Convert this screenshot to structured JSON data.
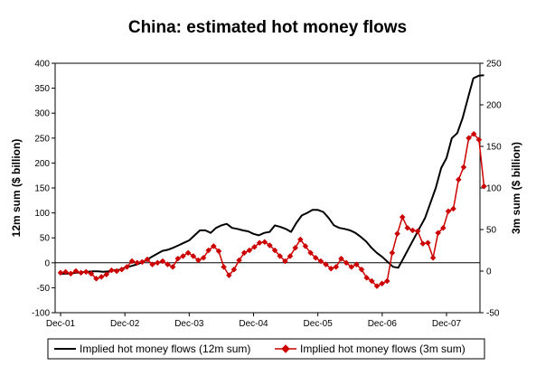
{
  "chart_data": {
    "type": "line",
    "title": "China: estimated hot money flows",
    "ylabel_left": "12m sum ($ billion)",
    "ylabel_right": "3m sum ($ billion)",
    "ylim_left": [
      -100,
      400
    ],
    "ylim_right": [
      -50,
      250
    ],
    "y_ticks_left": [
      -100,
      -50,
      0,
      50,
      100,
      150,
      200,
      250,
      300,
      350,
      400
    ],
    "y_ticks_right": [
      -50,
      0,
      50,
      100,
      150,
      200,
      250
    ],
    "x_tick_labels": [
      "Dec-01",
      "Dec-02",
      "Dec-03",
      "Dec-04",
      "Dec-05",
      "Dec-06",
      "Dec-07"
    ],
    "x_start": "Dec-01",
    "legend_position": "bottom",
    "series": [
      {
        "name": "Implied hot money flows (12m sum)",
        "axis": "left",
        "color": "#000000",
        "marker": "none",
        "values": [
          -22,
          -22,
          -21,
          -20,
          -19,
          -18,
          -17,
          -17,
          -18,
          -17,
          -15,
          -14,
          -10,
          -7,
          -4,
          0,
          5,
          12,
          18,
          24,
          26,
          30,
          35,
          40,
          45,
          55,
          65,
          65,
          60,
          70,
          75,
          78,
          70,
          68,
          65,
          63,
          58,
          55,
          60,
          62,
          75,
          72,
          68,
          62,
          80,
          95,
          100,
          106,
          106,
          102,
          90,
          75,
          70,
          68,
          65,
          60,
          52,
          43,
          30,
          20,
          12,
          2,
          -8,
          -10,
          10,
          30,
          50,
          70,
          90,
          120,
          150,
          190,
          210,
          250,
          260,
          290,
          330,
          370,
          375,
          376
        ]
      },
      {
        "name": "Implied hot money flows (3m sum)",
        "axis": "right",
        "color": "#cc0000",
        "marker": "diamond",
        "values": [
          -2,
          -1,
          -3,
          0,
          -2,
          -1,
          -3,
          -9,
          -7,
          -4,
          1,
          0,
          2,
          5,
          12,
          10,
          11,
          14,
          8,
          10,
          12,
          8,
          5,
          15,
          18,
          22,
          18,
          13,
          16,
          25,
          30,
          24,
          5,
          -5,
          2,
          13,
          22,
          25,
          29,
          34,
          35,
          31,
          25,
          18,
          12,
          18,
          28,
          38,
          30,
          22,
          16,
          12,
          8,
          3,
          5,
          15,
          10,
          5,
          8,
          2,
          -8,
          -12,
          -18,
          -15,
          -12,
          22,
          45,
          65,
          52,
          49,
          48,
          33,
          34,
          16,
          46,
          52,
          72,
          75,
          110,
          125,
          160,
          165,
          158,
          102
        ]
      }
    ]
  }
}
